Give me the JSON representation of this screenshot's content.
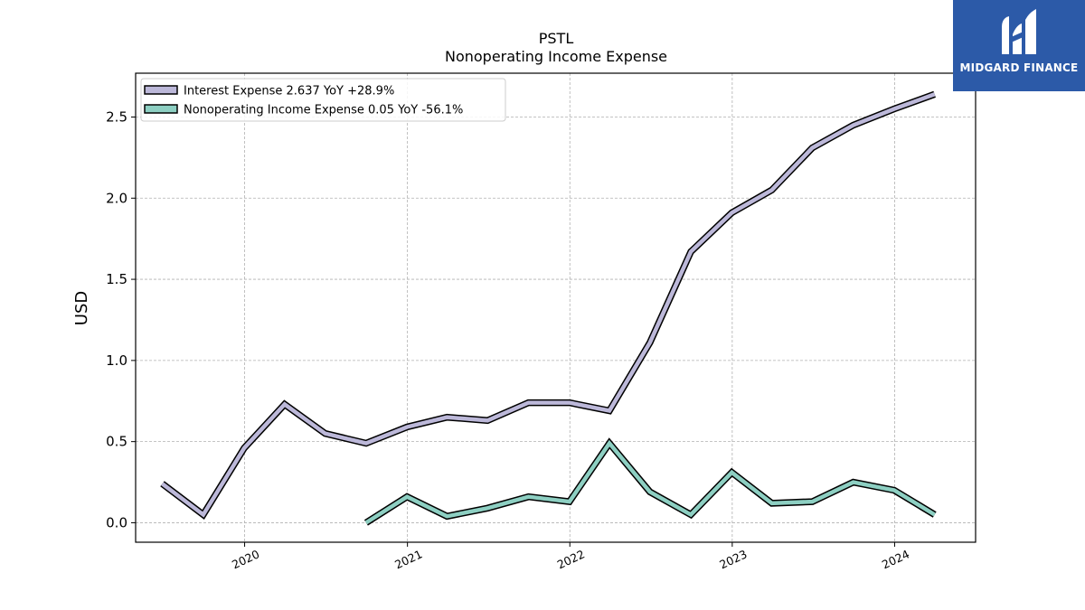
{
  "chart_data": {
    "type": "line",
    "title": "PSTL",
    "subtitle": "Nonoperating Income Expense",
    "ylabel": "USD",
    "xlabel": "",
    "xlim": [
      "2019-05-01",
      "2024-07-01"
    ],
    "ylim": [
      -0.12,
      2.77
    ],
    "yticks": [
      0.0,
      0.5,
      1.0,
      1.5,
      2.0,
      2.5
    ],
    "ytick_labels": [
      "0.0",
      "0.5",
      "1.0",
      "1.5",
      "2.0",
      "2.5"
    ],
    "xticks": [
      "2020-01-01",
      "2021-01-01",
      "2022-01-01",
      "2023-01-01",
      "2024-01-01"
    ],
    "xtick_labels": [
      "2020",
      "2021",
      "2022",
      "2023",
      "2024"
    ],
    "grid": true,
    "legend_position": "top-left",
    "series": [
      {
        "name": "Interest Expense",
        "legend_label": "Interest Expense  2.637 YoY +28.9%",
        "color": "#bcb8d9",
        "x": [
          "2019-06-30",
          "2019-09-30",
          "2019-12-31",
          "2020-03-31",
          "2020-06-30",
          "2020-09-30",
          "2020-12-31",
          "2021-03-31",
          "2021-06-30",
          "2021-09-30",
          "2021-12-31",
          "2022-03-31",
          "2022-06-30",
          "2022-09-30",
          "2022-12-31",
          "2023-03-31",
          "2023-06-30",
          "2023-09-30",
          "2023-12-31",
          "2024-03-31"
        ],
        "values": [
          0.24,
          0.05,
          0.46,
          0.73,
          0.55,
          0.49,
          0.59,
          0.65,
          0.63,
          0.74,
          0.74,
          0.69,
          1.11,
          1.67,
          1.91,
          2.05,
          2.31,
          2.45,
          2.55,
          2.64
        ]
      },
      {
        "name": "Nonoperating Income Expense",
        "legend_label": "Nonoperating Income Expense  0.05 YoY -56.1%",
        "color": "#8dcfc2",
        "x": [
          "2020-09-30",
          "2020-12-31",
          "2021-03-31",
          "2021-06-30",
          "2021-09-30",
          "2021-12-31",
          "2022-03-31",
          "2022-06-30",
          "2022-09-30",
          "2022-12-31",
          "2023-03-31",
          "2023-06-30",
          "2023-09-30",
          "2023-12-31",
          "2024-03-31"
        ],
        "values": [
          0.0,
          0.16,
          0.04,
          0.09,
          0.16,
          0.13,
          0.49,
          0.19,
          0.05,
          0.31,
          0.12,
          0.13,
          0.25,
          0.2,
          0.05
        ]
      }
    ]
  },
  "logo": {
    "text": "MIDGARD FINANCE",
    "background": "#2c5aa8"
  }
}
